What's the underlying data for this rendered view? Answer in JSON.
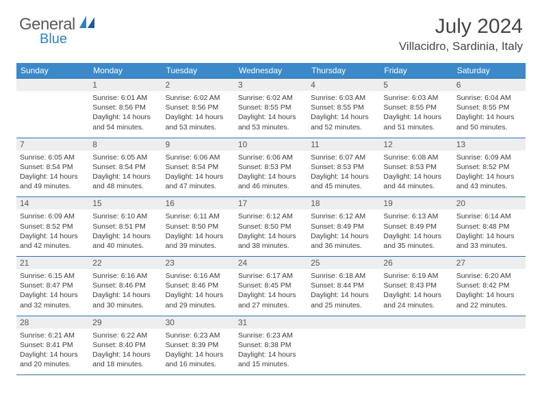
{
  "logo": {
    "text1": "General",
    "text2": "Blue"
  },
  "title": "July 2024",
  "location": "Villacidro, Sardinia, Italy",
  "colors": {
    "header_bg": "#3b89c9",
    "header_text": "#ffffff",
    "row_border": "#2f6fa8",
    "daynum_bg": "#eceef0",
    "logo_accent": "#2f7fc1",
    "body_text": "#3a3a3a"
  },
  "daynames": [
    "Sunday",
    "Monday",
    "Tuesday",
    "Wednesday",
    "Thursday",
    "Friday",
    "Saturday"
  ],
  "weeks": [
    [
      {
        "n": "",
        "sr": "",
        "ss": "",
        "dl": ""
      },
      {
        "n": "1",
        "sr": "6:01 AM",
        "ss": "8:56 PM",
        "dl": "14 hours and 54 minutes."
      },
      {
        "n": "2",
        "sr": "6:02 AM",
        "ss": "8:56 PM",
        "dl": "14 hours and 53 minutes."
      },
      {
        "n": "3",
        "sr": "6:02 AM",
        "ss": "8:55 PM",
        "dl": "14 hours and 53 minutes."
      },
      {
        "n": "4",
        "sr": "6:03 AM",
        "ss": "8:55 PM",
        "dl": "14 hours and 52 minutes."
      },
      {
        "n": "5",
        "sr": "6:03 AM",
        "ss": "8:55 PM",
        "dl": "14 hours and 51 minutes."
      },
      {
        "n": "6",
        "sr": "6:04 AM",
        "ss": "8:55 PM",
        "dl": "14 hours and 50 minutes."
      }
    ],
    [
      {
        "n": "7",
        "sr": "6:05 AM",
        "ss": "8:54 PM",
        "dl": "14 hours and 49 minutes."
      },
      {
        "n": "8",
        "sr": "6:05 AM",
        "ss": "8:54 PM",
        "dl": "14 hours and 48 minutes."
      },
      {
        "n": "9",
        "sr": "6:06 AM",
        "ss": "8:54 PM",
        "dl": "14 hours and 47 minutes."
      },
      {
        "n": "10",
        "sr": "6:06 AM",
        "ss": "8:53 PM",
        "dl": "14 hours and 46 minutes."
      },
      {
        "n": "11",
        "sr": "6:07 AM",
        "ss": "8:53 PM",
        "dl": "14 hours and 45 minutes."
      },
      {
        "n": "12",
        "sr": "6:08 AM",
        "ss": "8:53 PM",
        "dl": "14 hours and 44 minutes."
      },
      {
        "n": "13",
        "sr": "6:09 AM",
        "ss": "8:52 PM",
        "dl": "14 hours and 43 minutes."
      }
    ],
    [
      {
        "n": "14",
        "sr": "6:09 AM",
        "ss": "8:52 PM",
        "dl": "14 hours and 42 minutes."
      },
      {
        "n": "15",
        "sr": "6:10 AM",
        "ss": "8:51 PM",
        "dl": "14 hours and 40 minutes."
      },
      {
        "n": "16",
        "sr": "6:11 AM",
        "ss": "8:50 PM",
        "dl": "14 hours and 39 minutes."
      },
      {
        "n": "17",
        "sr": "6:12 AM",
        "ss": "8:50 PM",
        "dl": "14 hours and 38 minutes."
      },
      {
        "n": "18",
        "sr": "6:12 AM",
        "ss": "8:49 PM",
        "dl": "14 hours and 36 minutes."
      },
      {
        "n": "19",
        "sr": "6:13 AM",
        "ss": "8:49 PM",
        "dl": "14 hours and 35 minutes."
      },
      {
        "n": "20",
        "sr": "6:14 AM",
        "ss": "8:48 PM",
        "dl": "14 hours and 33 minutes."
      }
    ],
    [
      {
        "n": "21",
        "sr": "6:15 AM",
        "ss": "8:47 PM",
        "dl": "14 hours and 32 minutes."
      },
      {
        "n": "22",
        "sr": "6:16 AM",
        "ss": "8:46 PM",
        "dl": "14 hours and 30 minutes."
      },
      {
        "n": "23",
        "sr": "6:16 AM",
        "ss": "8:46 PM",
        "dl": "14 hours and 29 minutes."
      },
      {
        "n": "24",
        "sr": "6:17 AM",
        "ss": "8:45 PM",
        "dl": "14 hours and 27 minutes."
      },
      {
        "n": "25",
        "sr": "6:18 AM",
        "ss": "8:44 PM",
        "dl": "14 hours and 25 minutes."
      },
      {
        "n": "26",
        "sr": "6:19 AM",
        "ss": "8:43 PM",
        "dl": "14 hours and 24 minutes."
      },
      {
        "n": "27",
        "sr": "6:20 AM",
        "ss": "8:42 PM",
        "dl": "14 hours and 22 minutes."
      }
    ],
    [
      {
        "n": "28",
        "sr": "6:21 AM",
        "ss": "8:41 PM",
        "dl": "14 hours and 20 minutes."
      },
      {
        "n": "29",
        "sr": "6:22 AM",
        "ss": "8:40 PM",
        "dl": "14 hours and 18 minutes."
      },
      {
        "n": "30",
        "sr": "6:23 AM",
        "ss": "8:39 PM",
        "dl": "14 hours and 16 minutes."
      },
      {
        "n": "31",
        "sr": "6:23 AM",
        "ss": "8:38 PM",
        "dl": "14 hours and 15 minutes."
      },
      {
        "n": "",
        "sr": "",
        "ss": "",
        "dl": ""
      },
      {
        "n": "",
        "sr": "",
        "ss": "",
        "dl": ""
      },
      {
        "n": "",
        "sr": "",
        "ss": "",
        "dl": ""
      }
    ]
  ],
  "labels": {
    "sunrise": "Sunrise:",
    "sunset": "Sunset:",
    "daylight": "Daylight:"
  }
}
